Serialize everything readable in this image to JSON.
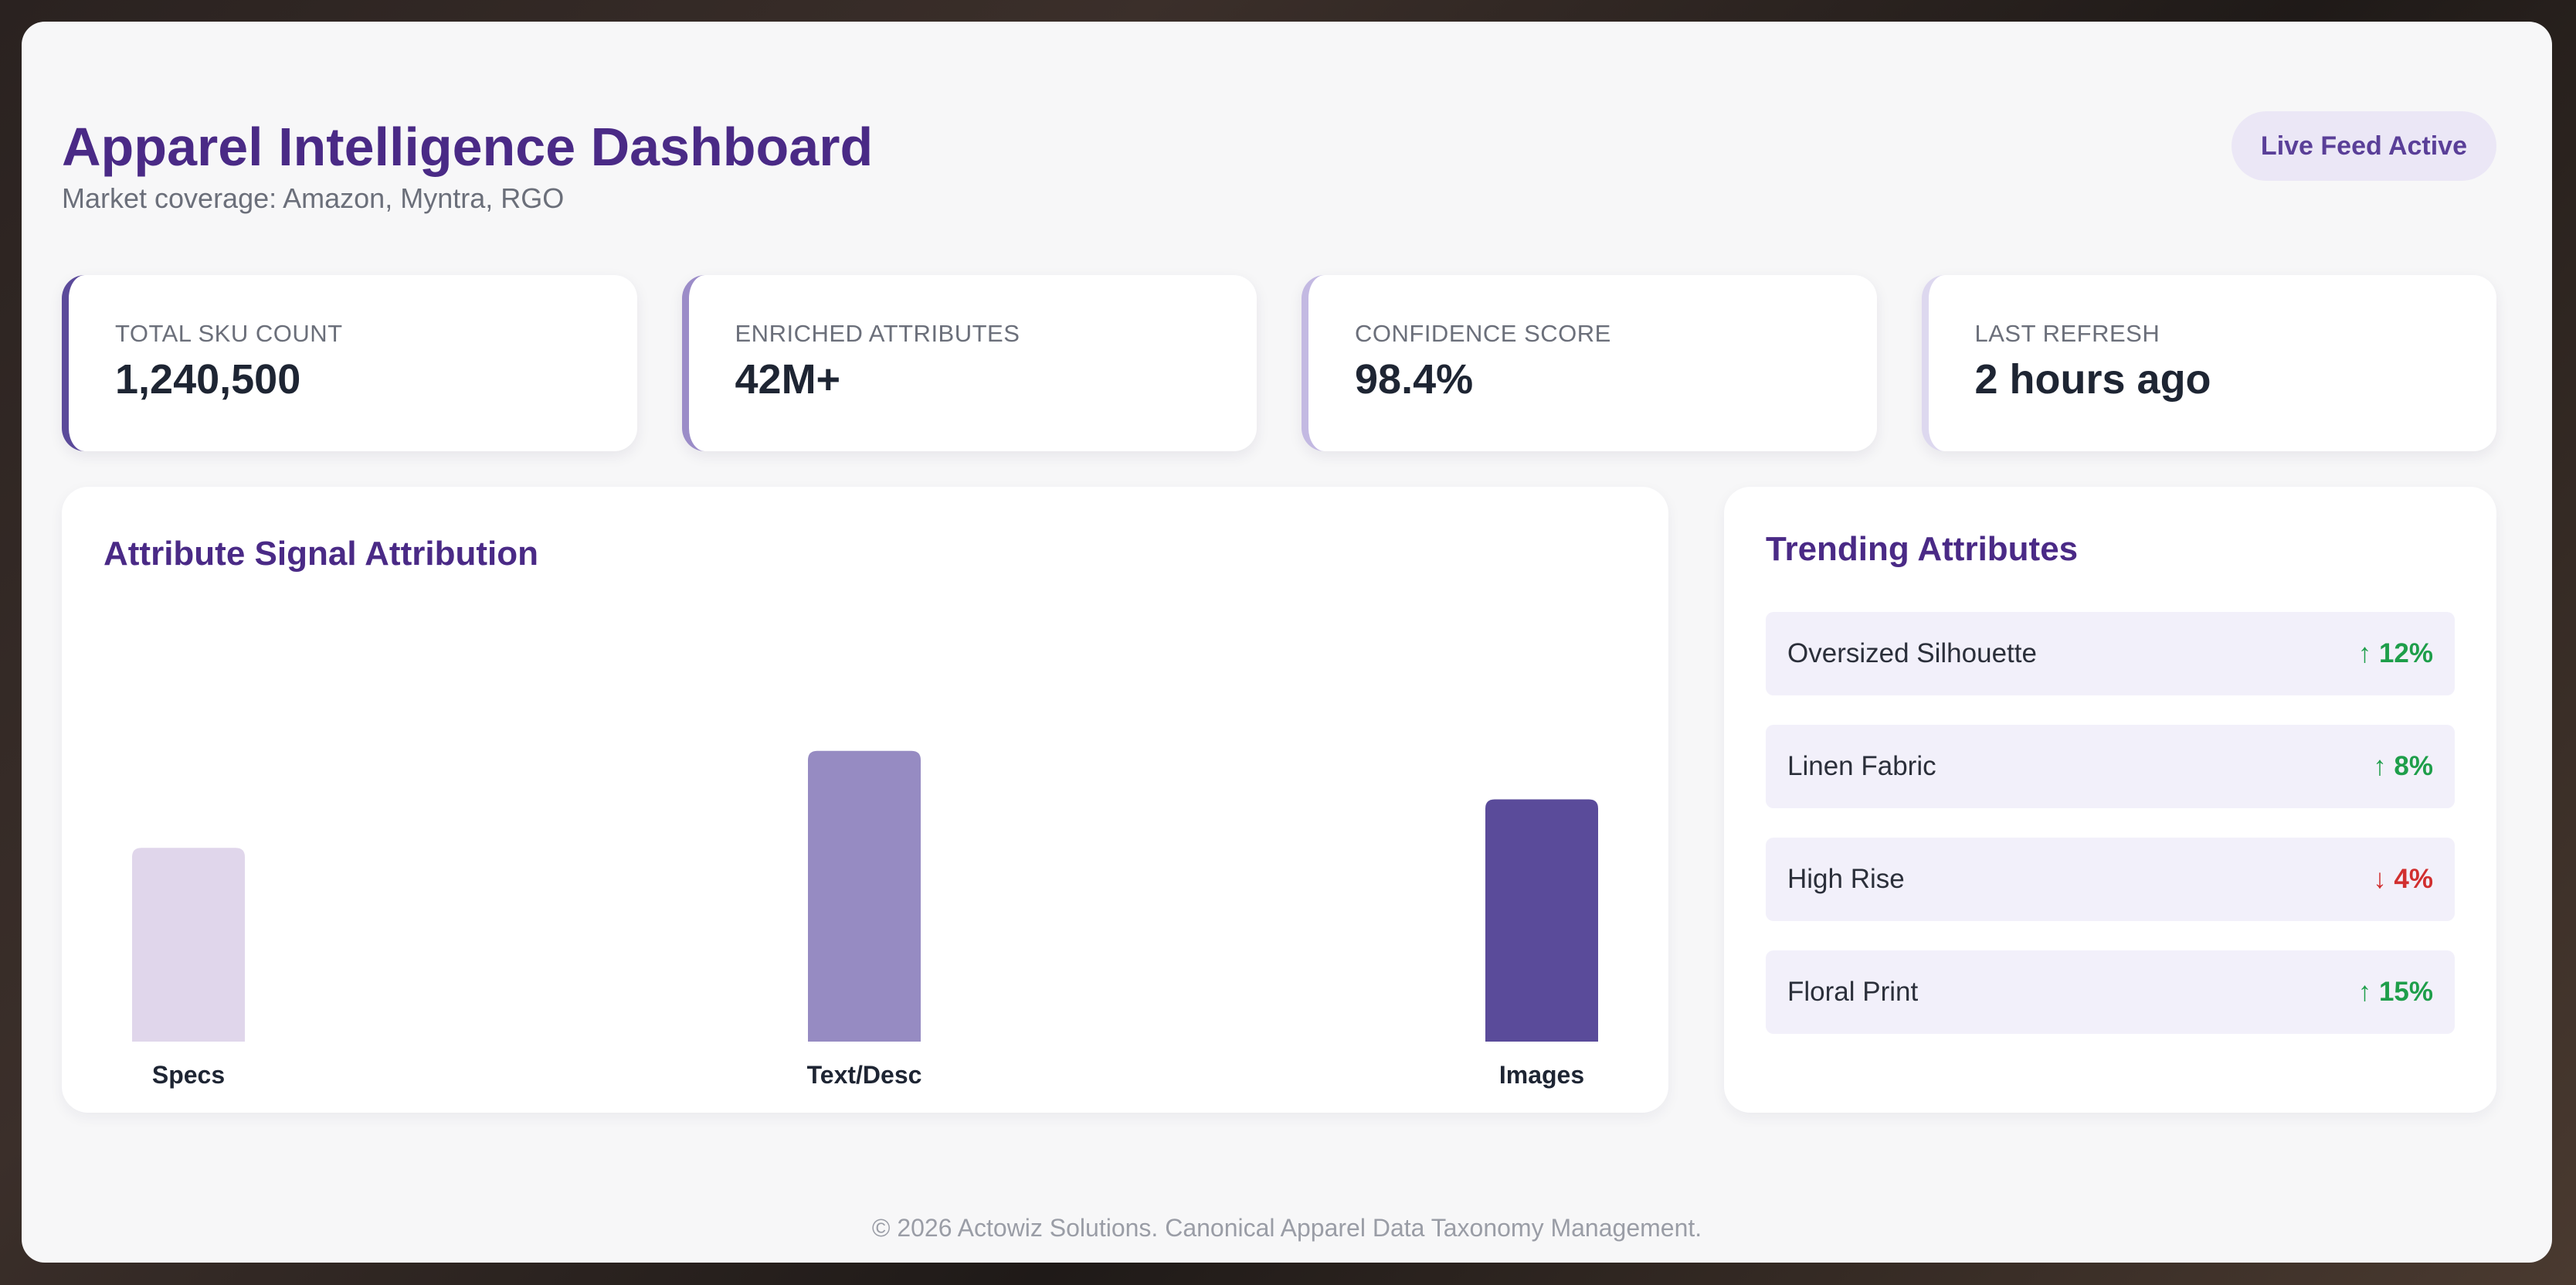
{
  "header": {
    "title": "Apparel Intelligence Dashboard",
    "subtitle": "Market coverage: Amazon, Myntra, RGO",
    "badge": "Live Feed Active"
  },
  "stats": [
    {
      "label": "TOTAL SKU COUNT",
      "value": "1,240,500"
    },
    {
      "label": "ENRICHED ATTRIBUTES",
      "value": "42M+"
    },
    {
      "label": "CONFIDENCE SCORE",
      "value": "98.4%"
    },
    {
      "label": "LAST REFRESH",
      "value": "2 hours ago"
    }
  ],
  "chart_panel": {
    "title": "Attribute Signal Attribution"
  },
  "chart_data": {
    "type": "bar",
    "title": "Attribute Signal Attribution",
    "categories": [
      "Specs",
      "Text/Desc",
      "Images"
    ],
    "values": [
      60,
      90,
      75
    ],
    "colors": [
      "#e0d6eb",
      "#968bc2",
      "#5a4b9a"
    ],
    "ylim": [
      0,
      100
    ],
    "grid": false
  },
  "trending": {
    "title": "Trending Attributes",
    "items": [
      {
        "name": "Oversized Silhouette",
        "change": "↑ 12%",
        "direction": "up"
      },
      {
        "name": "Linen Fabric",
        "change": "↑ 8%",
        "direction": "up"
      },
      {
        "name": "High Rise",
        "change": "↓ 4%",
        "direction": "down"
      },
      {
        "name": "Floral Print",
        "change": "↑ 15%",
        "direction": "up"
      }
    ],
    "colors": {
      "up": "#1e9e4a",
      "down": "#d12f2f"
    }
  },
  "footer": {
    "text": "© 2026 Actowiz Solutions. Canonical Apparel Data Taxonomy Management."
  }
}
